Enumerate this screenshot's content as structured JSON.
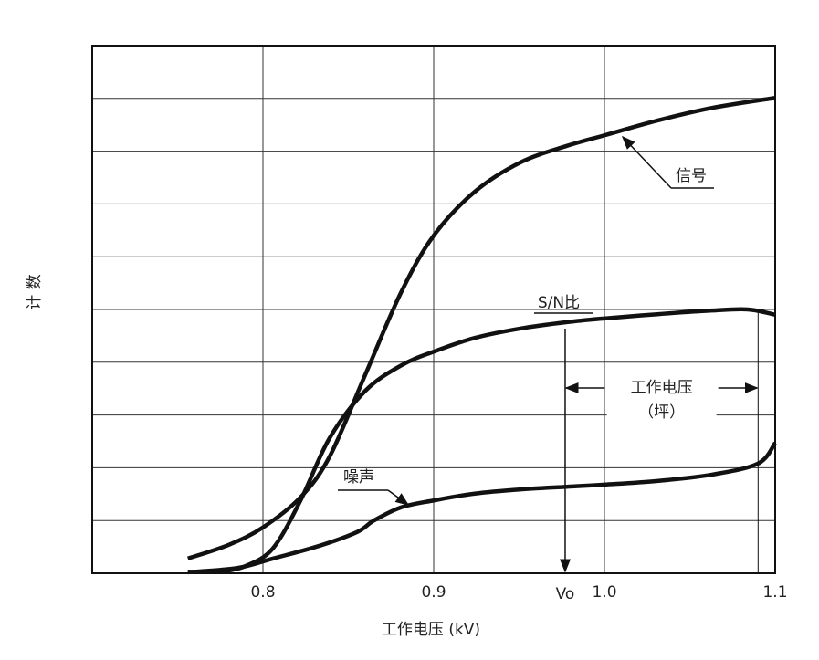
{
  "chart_data": {
    "type": "line",
    "xlabel": "工作电压 (kV)",
    "ylabel": "计 数",
    "xlim": [
      0.7,
      1.1
    ],
    "xticks": [
      0.8,
      0.9,
      {
        "value": 1,
        "label": "1.0"
      },
      1.1
    ],
    "ylim": [
      0,
      10
    ],
    "yticks": [
      0,
      1,
      2,
      3,
      4,
      5,
      6,
      7,
      8,
      9,
      10
    ],
    "grid": true,
    "series": [
      {
        "name": "信号",
        "color": "#111111",
        "x": [
          0.756,
          0.78,
          0.8,
          0.822,
          0.839,
          0.86,
          0.881,
          0.9,
          0.924,
          0.951,
          0.978,
          1.0,
          1.031,
          1.063,
          1.1
        ],
        "values": [
          0.28,
          0.54,
          0.87,
          1.44,
          2.21,
          3.77,
          5.33,
          6.4,
          7.23,
          7.79,
          8.1,
          8.3,
          8.58,
          8.82,
          9.01
        ]
      },
      {
        "name": "S/N比",
        "color": "#111111",
        "x": [
          0.756,
          0.774,
          0.79,
          0.806,
          0.822,
          0.839,
          0.86,
          0.881,
          0.9,
          0.924,
          0.951,
          0.978,
          1.0,
          1.031,
          1.063,
          1.084,
          1.1
        ],
        "values": [
          0.03,
          0.03,
          0.14,
          0.48,
          1.38,
          2.56,
          3.46,
          3.94,
          4.2,
          4.46,
          4.64,
          4.76,
          4.83,
          4.91,
          4.98,
          5.0,
          4.9
        ]
      },
      {
        "name": "噪声",
        "color": "#111111",
        "x": [
          0.756,
          0.785,
          0.806,
          0.833,
          0.855,
          0.865,
          0.881,
          0.9,
          0.924,
          0.951,
          0.978,
          1.0,
          1.031,
          1.063,
          1.09,
          1.1
        ],
        "values": [
          0.02,
          0.1,
          0.28,
          0.52,
          0.78,
          1.0,
          1.25,
          1.38,
          1.51,
          1.59,
          1.64,
          1.68,
          1.75,
          1.87,
          2.08,
          2.47
        ]
      }
    ],
    "vo": {
      "label": "Vo",
      "x": 0.977
    },
    "plateau": {
      "label": "工作电压",
      "sublabel": "（坪）",
      "x": [
        0.977,
        1.09
      ]
    }
  }
}
